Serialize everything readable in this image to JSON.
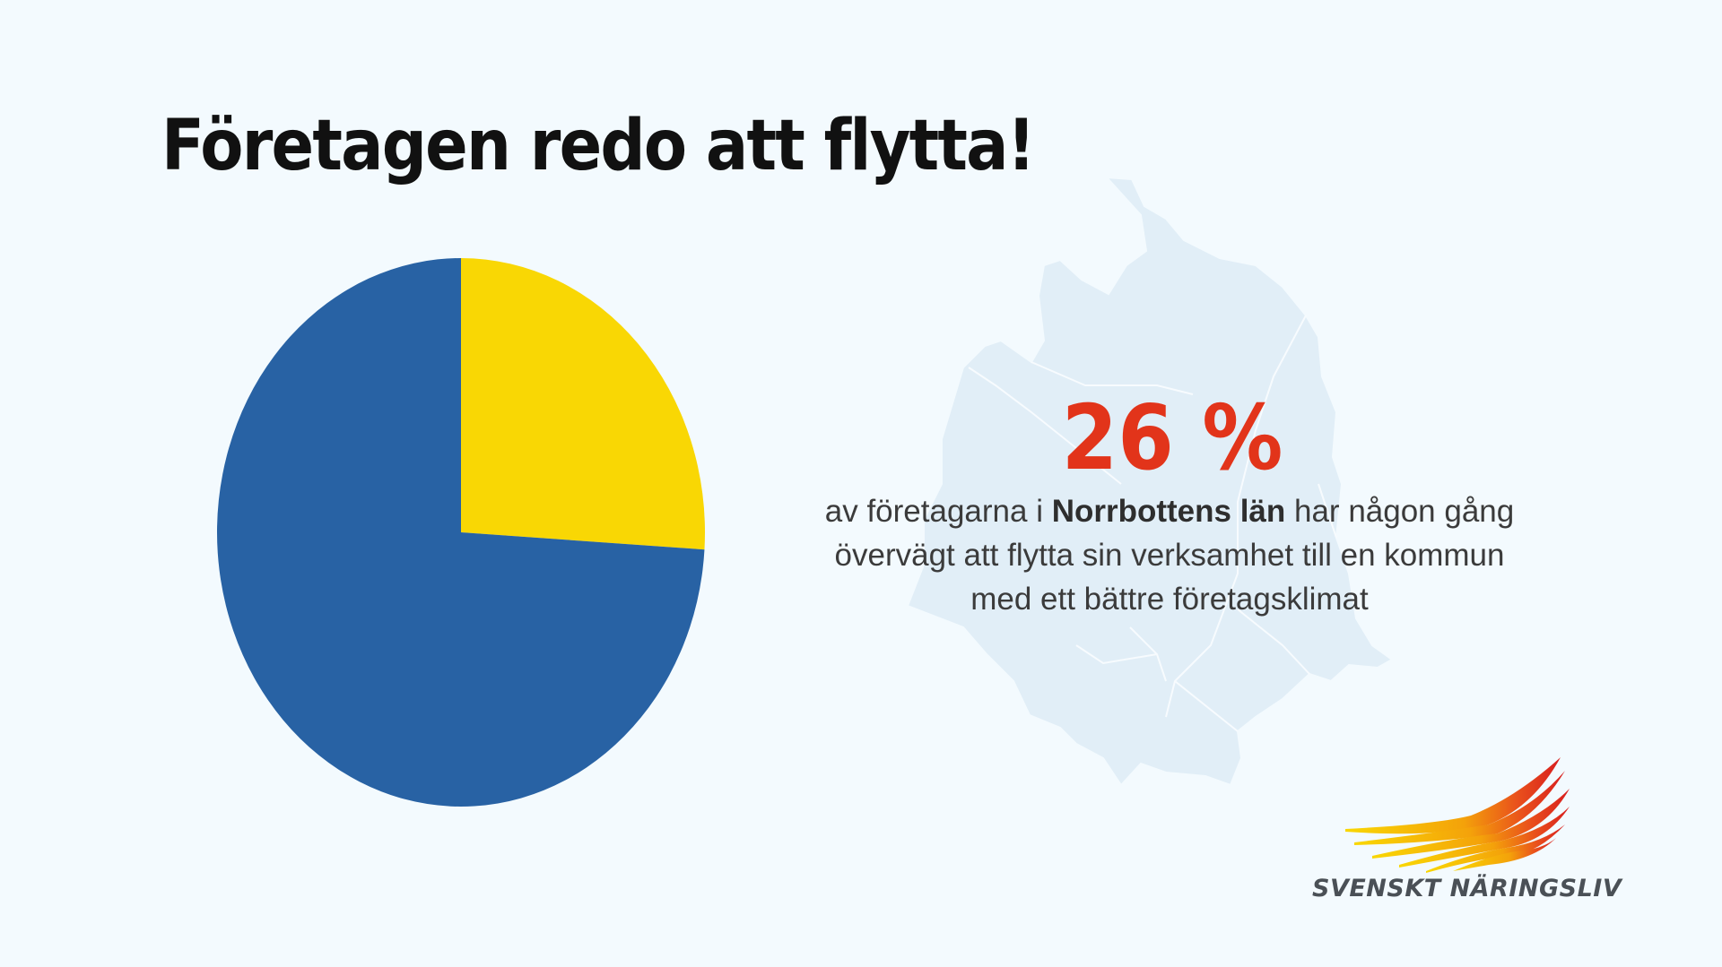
{
  "title": "Företagen redo att flytta!",
  "highlight": {
    "value": "26 %",
    "color": "#e2341a"
  },
  "description": {
    "part1": "av företagarna i ",
    "bold": "Norrbottens län",
    "part2": " har någon gång",
    "line2": "övervägt att flytta sin verksamhet till en kommun",
    "line3": "med ett bättre företagsklimat"
  },
  "logo": {
    "text": "SVENSKT NÄRINGSLIV"
  },
  "chart_data": {
    "type": "pie",
    "title": "",
    "slices": [
      {
        "value": 26,
        "color": "#f9d704"
      },
      {
        "value": 74,
        "color": "#2862a4"
      }
    ],
    "start_angle": "top",
    "direction": "clockwise"
  }
}
